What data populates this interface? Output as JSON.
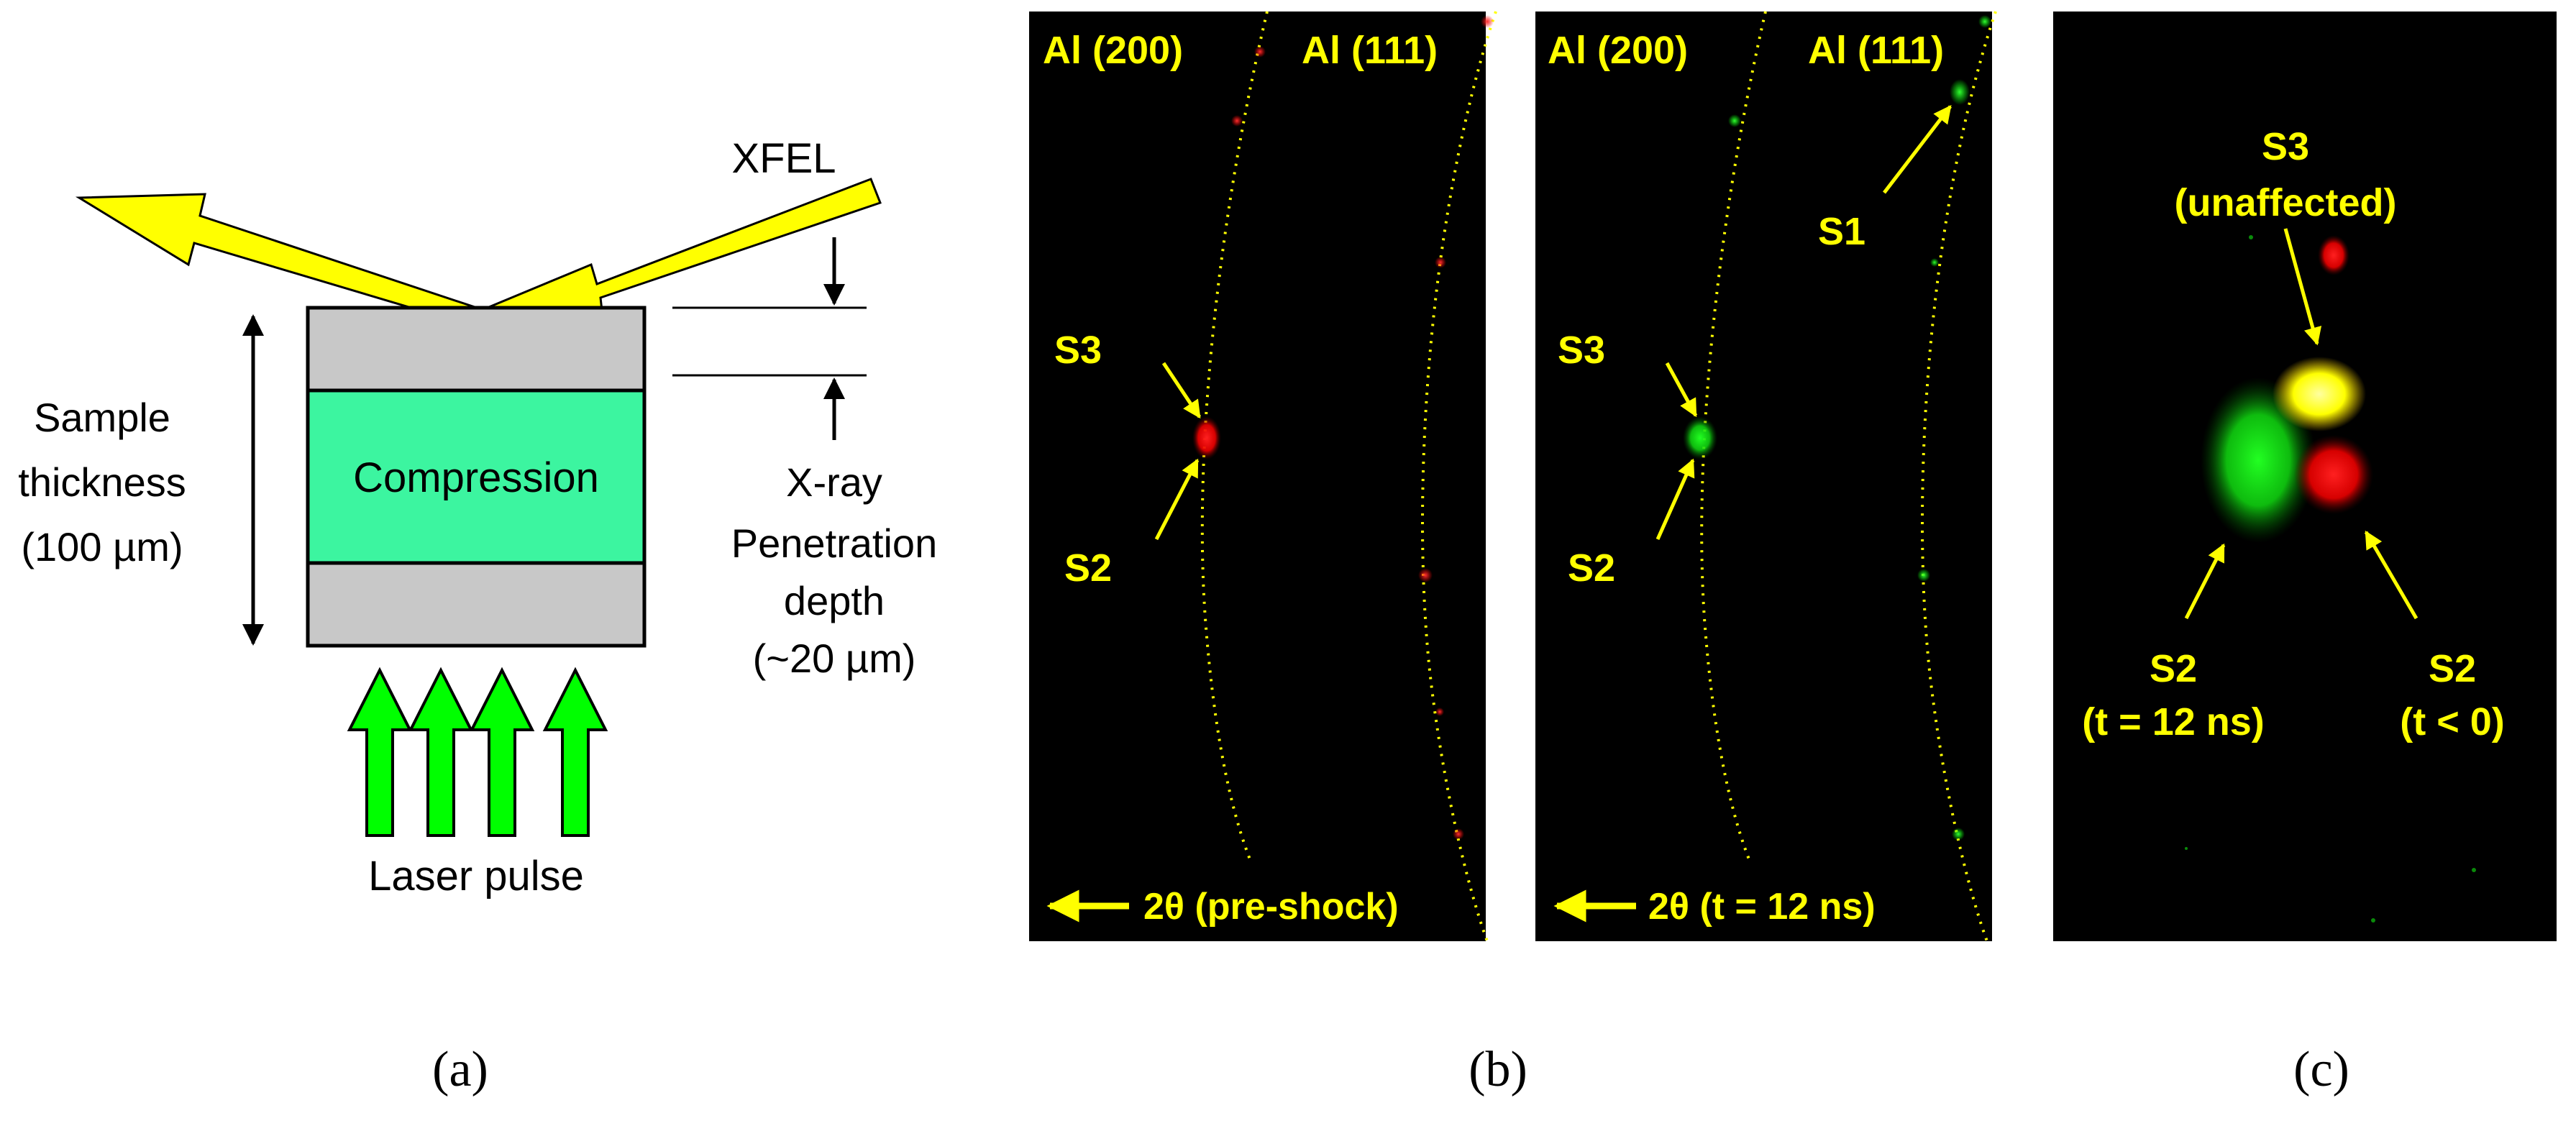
{
  "panel_a": {
    "xfel_label": "XFEL",
    "compression_label": "Compression",
    "thickness_label_line1": "Sample",
    "thickness_label_line2": "thickness",
    "thickness_label_line3": "(100 µm)",
    "penetration_line1": "X-ray",
    "penetration_line2": "Penetration",
    "penetration_line3": "depth",
    "penetration_line4": "(~20 µm)",
    "laser_label": "Laser pulse",
    "caption": "(a)",
    "colors": {
      "xfel_arrow": "#ffff00",
      "compression_fill": "#3cf5a0",
      "unshocked_fill": "#c8c8c8",
      "laser_arrow": "#00ff00"
    }
  },
  "panel_b": {
    "caption": "(b)",
    "left_image": {
      "ring_200": "Al (200)",
      "ring_111": "Al (111)",
      "spot_s3": "S3",
      "spot_s2": "S2",
      "direction_label": "2θ (pre-shock)"
    },
    "right_image": {
      "ring_200": "Al (200)",
      "ring_111": "Al (111)",
      "spot_s1": "S1",
      "spot_s3": "S3",
      "spot_s2": "S2",
      "direction_label": "2θ (t = 12 ns)"
    }
  },
  "panel_c": {
    "caption": "(c)",
    "s3_line1": "S3",
    "s3_line2": "(unaffected)",
    "s2_shocked_line1": "S2",
    "s2_shocked_line2": "(t = 12 ns)",
    "s2_preshock_line1": "S2",
    "s2_preshock_line2": "(t < 0)",
    "colors": {
      "pre_shock": "#ff0000",
      "post_shock": "#00ff00",
      "overlap": "#ffff00"
    }
  }
}
